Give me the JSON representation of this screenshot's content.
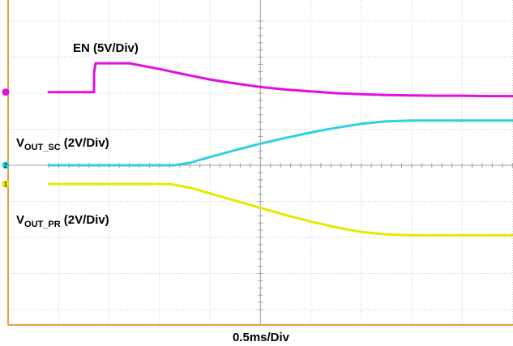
{
  "chart_data": {
    "type": "line",
    "xlabel": "0.5ms/Div",
    "x_divisions": 10,
    "y_divisions": 8,
    "grid": true,
    "x_range_div": [
      -0.2,
      9.9
    ],
    "y_range_div": [
      -4,
      4
    ],
    "series": [
      {
        "name_main": "EN",
        "name_sub": "",
        "scale": "(5V/Div)",
        "marker": "",
        "color": "#e010e0",
        "x": [
          -0.2,
          0.7,
          0.7,
          0.73,
          1.4,
          2.0,
          2.5,
          3.0,
          3.5,
          4.0,
          4.5,
          5.0,
          5.5,
          6.0,
          6.5,
          7.0,
          7.5,
          8.0,
          8.5,
          9.0,
          9.9
        ],
        "y": [
          2.03,
          2.03,
          2.55,
          2.83,
          2.83,
          2.67,
          2.52,
          2.38,
          2.27,
          2.17,
          2.1,
          2.05,
          2.0,
          1.97,
          1.95,
          1.94,
          1.93,
          1.93,
          1.92,
          1.92,
          1.92
        ]
      },
      {
        "name_main": "V",
        "name_sub": "OUT_SC",
        "scale": "(2V/Div)",
        "marker": "2",
        "color": "#30d0e0",
        "x": [
          -0.2,
          2.3,
          2.6,
          3.0,
          3.5,
          4.0,
          4.5,
          5.0,
          5.5,
          6.0,
          6.5,
          7.0,
          7.5,
          8.0,
          8.5,
          9.0,
          9.9
        ],
        "y": [
          0.0,
          0.0,
          0.07,
          0.23,
          0.42,
          0.6,
          0.76,
          0.91,
          1.04,
          1.15,
          1.22,
          1.24,
          1.24,
          1.24,
          1.24,
          1.24,
          1.24
        ]
      },
      {
        "name_main": "V",
        "name_sub": "OUT_PR",
        "scale": "(2V/Div)",
        "marker": "1",
        "color": "#e8e800",
        "x": [
          -0.2,
          2.2,
          2.6,
          3.0,
          3.5,
          4.0,
          4.5,
          5.0,
          5.5,
          6.0,
          6.5,
          7.0,
          7.5,
          8.0,
          8.5,
          9.0,
          9.9
        ],
        "y": [
          -0.52,
          -0.52,
          -0.62,
          -0.78,
          -0.98,
          -1.18,
          -1.38,
          -1.56,
          -1.72,
          -1.85,
          -1.92,
          -1.94,
          -1.94,
          -1.94,
          -1.94,
          -1.94,
          -1.94
        ]
      }
    ]
  }
}
